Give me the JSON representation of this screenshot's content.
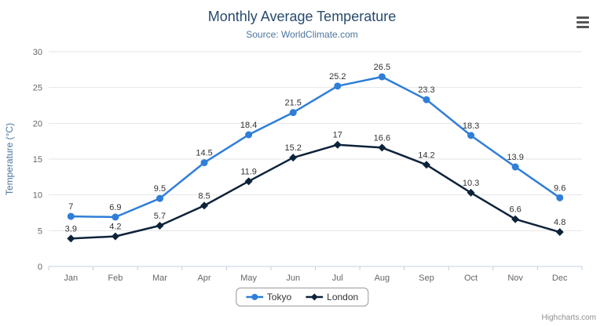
{
  "chart_data": {
    "type": "line",
    "title": "Monthly Average Temperature",
    "subtitle": "Source: WorldClimate.com",
    "categories": [
      "Jan",
      "Feb",
      "Mar",
      "Apr",
      "May",
      "Jun",
      "Jul",
      "Aug",
      "Sep",
      "Oct",
      "Nov",
      "Dec"
    ],
    "series": [
      {
        "name": "Tokyo",
        "color": "#2f7ed8",
        "marker": "circle",
        "values": [
          7,
          6.9,
          9.5,
          14.5,
          18.4,
          21.5,
          25.2,
          26.5,
          23.3,
          18.3,
          13.9,
          9.6
        ]
      },
      {
        "name": "London",
        "color": "#0d233a",
        "marker": "diamond",
        "values": [
          3.9,
          4.2,
          5.7,
          8.5,
          11.9,
          15.2,
          17,
          16.6,
          14.2,
          10.3,
          6.6,
          4.8
        ]
      }
    ],
    "xlabel": "",
    "ylabel": "Temperature (°C)",
    "ylim": [
      0,
      30
    ],
    "ytick": 5,
    "grid": true,
    "legend_position": "bottom",
    "data_labels": true
  },
  "credits": {
    "label": "Highcharts.com"
  },
  "export_menu": {
    "icon": "hamburger-icon"
  },
  "colors": {
    "title": "#274b6d",
    "subtitle": "#4d759e",
    "axis_title": "#4d759e",
    "axis_labels": "#666666",
    "data_labels": "#333333",
    "grid": "#e6e6e6",
    "axis_line": "#c0d0e0",
    "legend_border": "#999999",
    "credits": "#909090"
  }
}
